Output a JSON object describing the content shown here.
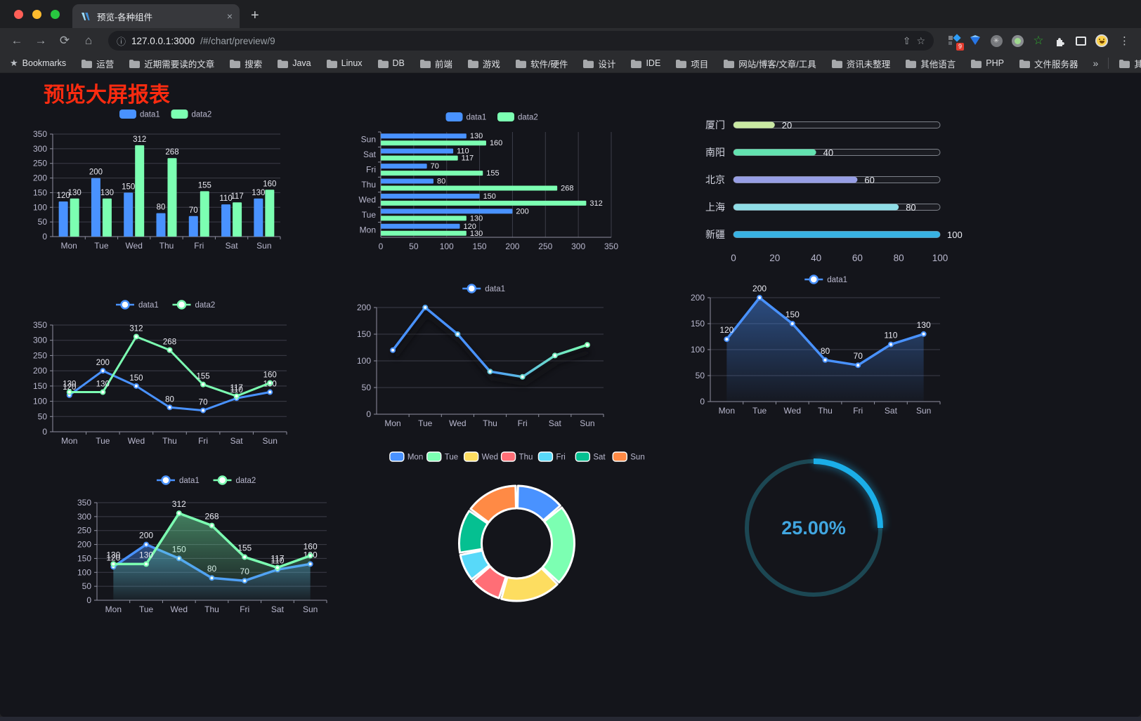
{
  "browser": {
    "tab": {
      "title": "预览-各种组件",
      "close": "×"
    },
    "new_tab_button": "+",
    "address": {
      "host": "127.0.0.1:3000",
      "path": "/#/chart/preview/9"
    },
    "extension_badge": "9",
    "bookmarks_bar": {
      "label": "Bookmarks",
      "folders": [
        "运营",
        "近期需要读的文章",
        "搜索",
        "Java",
        "Linux",
        "DB",
        "前端",
        "游戏",
        "软件/硬件",
        "设计",
        "IDE",
        "项目",
        "网站/博客/文章/工具",
        "资讯未整理",
        "其他语言",
        "PHP",
        "文件服务器"
      ],
      "overflow": "»",
      "other": "其他书签"
    }
  },
  "page": {
    "title": "预览大屏报表",
    "title_color": "#fb2b10"
  },
  "theme": {
    "axis_label": "#b9b8ce",
    "grid": "#3c3d49",
    "axis_line": "#8f90a0",
    "value_label": "#e8e8f0",
    "background": "#14151b"
  },
  "chart_data": [
    {
      "id": "bar-grouped",
      "type": "bar",
      "legend_position": "top",
      "grid": true,
      "value_labels": true,
      "categories": [
        "Mon",
        "Tue",
        "Wed",
        "Thu",
        "Fri",
        "Sat",
        "Sun"
      ],
      "series": [
        {
          "name": "data1",
          "color": "#4992ff",
          "values": [
            120,
            200,
            150,
            80,
            70,
            110,
            130
          ]
        },
        {
          "name": "data2",
          "color": "#7cffb2",
          "values": [
            130,
            130,
            312,
            268,
            155,
            117,
            160
          ]
        }
      ],
      "ylim": [
        0,
        350
      ],
      "yticks": [
        0,
        50,
        100,
        150,
        200,
        250,
        300,
        350
      ]
    },
    {
      "id": "bar-horizontal",
      "type": "bar-horizontal",
      "legend_position": "top",
      "grid": true,
      "value_labels": true,
      "categories": [
        "Mon",
        "Tue",
        "Wed",
        "Thu",
        "Fri",
        "Sat",
        "Sun"
      ],
      "series": [
        {
          "name": "data1",
          "color": "#4992ff",
          "values": [
            120,
            200,
            150,
            80,
            70,
            110,
            130
          ]
        },
        {
          "name": "data2",
          "color": "#7cffb2",
          "values": [
            130,
            130,
            312,
            268,
            155,
            117,
            160
          ]
        }
      ],
      "xlim": [
        0,
        350
      ],
      "xticks": [
        0,
        50,
        100,
        150,
        200,
        250,
        300,
        350
      ]
    },
    {
      "id": "progress-bars",
      "type": "progress",
      "rows": [
        {
          "label": "厦门",
          "value": 20,
          "color": "#c9e8a2"
        },
        {
          "label": "南阳",
          "value": 40,
          "color": "#63e2b0"
        },
        {
          "label": "北京",
          "value": 60,
          "color": "#979ee5"
        },
        {
          "label": "上海",
          "value": 80,
          "color": "#8fdde6"
        },
        {
          "label": "新疆",
          "value": 100,
          "color": "#38b2e3"
        }
      ],
      "xlim": [
        0,
        100
      ],
      "xticks": [
        0,
        20,
        40,
        60,
        80,
        100
      ]
    },
    {
      "id": "line-two",
      "type": "line",
      "legend_position": "top",
      "grid": true,
      "value_labels": true,
      "categories": [
        "Mon",
        "Tue",
        "Wed",
        "Thu",
        "Fri",
        "Sat",
        "Sun"
      ],
      "series": [
        {
          "name": "data1",
          "color": "#4992ff",
          "values": [
            120,
            200,
            150,
            80,
            70,
            110,
            130
          ]
        },
        {
          "name": "data2",
          "color": "#7cffb2",
          "values": [
            130,
            130,
            312,
            268,
            155,
            117,
            160
          ]
        }
      ],
      "ylim": [
        0,
        350
      ],
      "yticks": [
        0,
        50,
        100,
        150,
        200,
        250,
        300,
        350
      ]
    },
    {
      "id": "line-gradient",
      "type": "line-gradient",
      "legend_position": "top",
      "grid": true,
      "value_labels": false,
      "categories": [
        "Mon",
        "Tue",
        "Wed",
        "Thu",
        "Fri",
        "Sat",
        "Sun"
      ],
      "series": [
        {
          "name": "data1",
          "color": "#4992ff",
          "gradient": [
            "#4992ff",
            "#7cffb2"
          ],
          "values": [
            120,
            200,
            150,
            80,
            70,
            110,
            130
          ]
        }
      ],
      "ylim": [
        0,
        200
      ],
      "yticks": [
        0,
        50,
        100,
        150,
        200
      ],
      "shadow": true
    },
    {
      "id": "area-single",
      "type": "area",
      "legend_position": "top",
      "grid": true,
      "value_labels": true,
      "categories": [
        "Mon",
        "Tue",
        "Wed",
        "Thu",
        "Fri",
        "Sat",
        "Sun"
      ],
      "series": [
        {
          "name": "data1",
          "color": "#4992ff",
          "values": [
            120,
            200,
            150,
            80,
            70,
            110,
            130
          ]
        }
      ],
      "ylim": [
        0,
        200
      ],
      "yticks": [
        0,
        50,
        100,
        150,
        200
      ]
    },
    {
      "id": "area-two",
      "type": "area",
      "legend_position": "top",
      "grid": true,
      "value_labels": true,
      "categories": [
        "Mon",
        "Tue",
        "Wed",
        "Thu",
        "Fri",
        "Sat",
        "Sun"
      ],
      "series": [
        {
          "name": "data1",
          "color": "#4992ff",
          "values": [
            120,
            200,
            150,
            80,
            70,
            110,
            130
          ]
        },
        {
          "name": "data2",
          "color": "#7cffb2",
          "values": [
            130,
            130,
            312,
            268,
            155,
            117,
            160
          ]
        }
      ],
      "ylim": [
        0,
        350
      ],
      "yticks": [
        0,
        50,
        100,
        150,
        200,
        250,
        300,
        350
      ]
    },
    {
      "id": "donut",
      "type": "pie",
      "legend_position": "top",
      "slices": [
        {
          "label": "Mon",
          "value": 120,
          "color": "#4992ff"
        },
        {
          "label": "Tue",
          "value": 200,
          "color": "#7cffb2"
        },
        {
          "label": "Wed",
          "value": 150,
          "color": "#fddd60"
        },
        {
          "label": "Thu",
          "value": 80,
          "color": "#ff6e76"
        },
        {
          "label": "Fri",
          "value": 70,
          "color": "#58d9f9"
        },
        {
          "label": "Sat",
          "value": 110,
          "color": "#05c091"
        },
        {
          "label": "Sun",
          "value": 130,
          "color": "#ff8a45"
        }
      ],
      "border_color": "#ffffff"
    },
    {
      "id": "gauge",
      "type": "gauge",
      "value": 25,
      "display": "25.00%",
      "progress_color": "#1baee8",
      "track_color": "#1c4753",
      "text_color": "#41a6e0"
    }
  ]
}
